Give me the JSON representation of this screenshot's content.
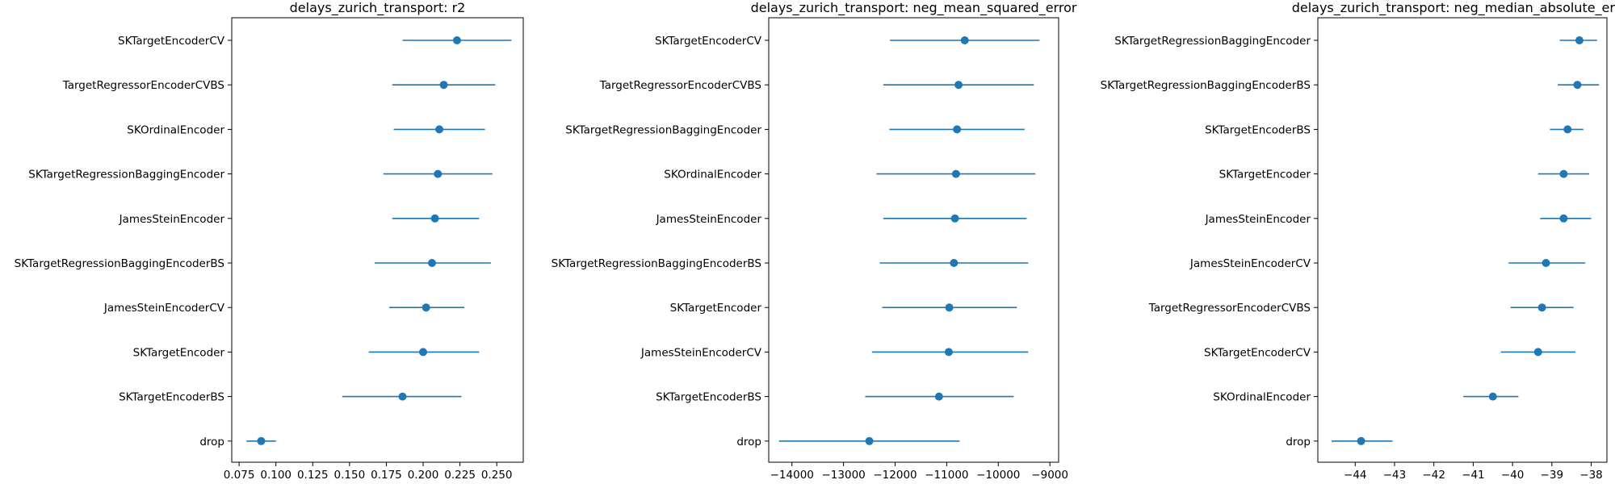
{
  "chart_data": [
    {
      "type": "scatter",
      "title": "delays_zurich_transport: r2",
      "xlim": [
        0.07,
        0.268
      ],
      "xticks": [
        0.075,
        0.1,
        0.125,
        0.15,
        0.175,
        0.2,
        0.225,
        0.25
      ],
      "xtick_labels": [
        "0.075",
        "0.100",
        "0.125",
        "0.150",
        "0.175",
        "0.200",
        "0.225",
        "0.250"
      ],
      "categories": [
        "SKTargetEncoderCV",
        "TargetRegressorEncoderCVBS",
        "SKOrdinalEncoder",
        "SKTargetRegressionBaggingEncoder",
        "JamesSteinEncoder",
        "SKTargetRegressionBaggingEncoderBS",
        "JamesSteinEncoderCV",
        "SKTargetEncoder",
        "SKTargetEncoderBS",
        "drop"
      ],
      "values": [
        0.223,
        0.214,
        0.211,
        0.21,
        0.208,
        0.206,
        0.202,
        0.2,
        0.186,
        0.09
      ],
      "err_low": [
        0.186,
        0.179,
        0.18,
        0.173,
        0.179,
        0.167,
        0.177,
        0.163,
        0.145,
        0.08
      ],
      "err_high": [
        0.26,
        0.249,
        0.242,
        0.247,
        0.238,
        0.246,
        0.228,
        0.238,
        0.226,
        0.1
      ]
    },
    {
      "type": "scatter",
      "title": "delays_zurich_transport: neg_mean_squared_error",
      "xlim": [
        -14450,
        -8830
      ],
      "xticks": [
        -14000,
        -13000,
        -12000,
        -11000,
        -10000,
        -9000
      ],
      "xtick_labels": [
        "−14000",
        "−13000",
        "−12000",
        "−11000",
        "−10000",
        "−9000"
      ],
      "categories": [
        "SKTargetEncoderCV",
        "TargetRegressorEncoderCVBS",
        "SKTargetRegressionBaggingEncoder",
        "SKOrdinalEncoder",
        "JamesSteinEncoder",
        "SKTargetRegressionBaggingEncoderBS",
        "SKTargetEncoder",
        "JamesSteinEncoderCV",
        "SKTargetEncoderBS",
        "drop"
      ],
      "values": [
        -10650,
        -10770,
        -10800,
        -10820,
        -10840,
        -10860,
        -10950,
        -10960,
        -11150,
        -12500
      ],
      "err_low": [
        -12100,
        -12230,
        -12110,
        -12360,
        -12230,
        -12300,
        -12250,
        -12450,
        -12580,
        -14250
      ],
      "err_high": [
        -9200,
        -9310,
        -9490,
        -9280,
        -9450,
        -9420,
        -9640,
        -9420,
        -9700,
        -10750
      ]
    },
    {
      "type": "scatter",
      "title": "delays_zurich_transport: neg_median_absolute_error",
      "xlim": [
        -44.95,
        -37.6
      ],
      "xticks": [
        -44,
        -43,
        -42,
        -41,
        -40,
        -39,
        -38
      ],
      "xtick_labels": [
        "−44",
        "−43",
        "−42",
        "−41",
        "−40",
        "−39",
        "−38"
      ],
      "categories": [
        "SKTargetRegressionBaggingEncoder",
        "SKTargetRegressionBaggingEncoderBS",
        "SKTargetEncoderBS",
        "SKTargetEncoder",
        "JamesSteinEncoder",
        "JamesSteinEncoderCV",
        "TargetRegressorEncoderCVBS",
        "SKTargetEncoderCV",
        "SKOrdinalEncoder",
        "drop"
      ],
      "values": [
        -38.3,
        -38.35,
        -38.6,
        -38.7,
        -38.7,
        -39.15,
        -39.25,
        -39.35,
        -40.5,
        -43.85
      ],
      "err_low": [
        -38.8,
        -38.85,
        -39.05,
        -39.35,
        -39.3,
        -40.1,
        -40.05,
        -40.3,
        -41.25,
        -44.6
      ],
      "err_high": [
        -37.85,
        -37.8,
        -38.2,
        -38.05,
        -38.0,
        -38.15,
        -38.45,
        -38.4,
        -39.85,
        -43.05
      ]
    }
  ]
}
